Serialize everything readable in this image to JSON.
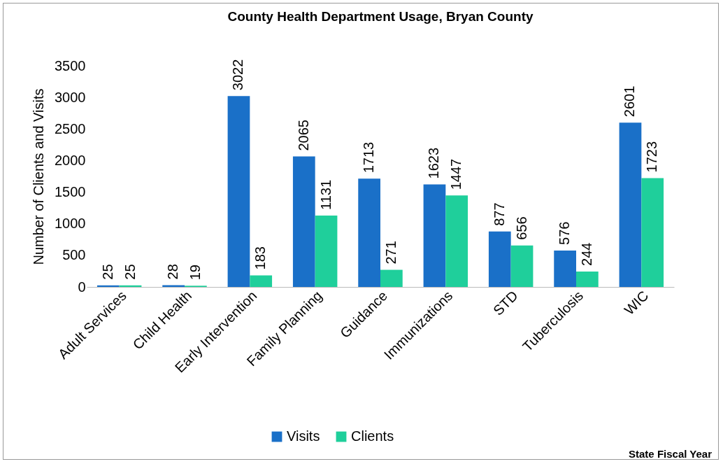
{
  "chart_data": {
    "type": "bar",
    "title": "County Health Department Usage, Bryan County",
    "annotations": [
      "State Fiscal Year"
    ],
    "ylabel": "Number of Clients and Visits",
    "categories": [
      "Adult Services",
      "Child Health",
      "Early Intervention",
      "Family Planning",
      "Guidance",
      "Immunizations",
      "STD",
      "Tuberculosis",
      "WIC"
    ],
    "series": [
      {
        "name": "Visits",
        "color": "#1a70c8",
        "values": [
          25,
          28,
          3022,
          2065,
          1713,
          1623,
          877,
          576,
          2601
        ]
      },
      {
        "name": "Clients",
        "color": "#1fcf9b",
        "values": [
          25,
          19,
          183,
          1131,
          271,
          1447,
          656,
          244,
          1723
        ]
      }
    ],
    "ylim": [
      0,
      3500
    ],
    "yticks": [
      0,
      500,
      1000,
      1500,
      2000,
      2500,
      3000,
      3500
    ],
    "grid": false,
    "legend": "bottom",
    "data_labels": true
  }
}
